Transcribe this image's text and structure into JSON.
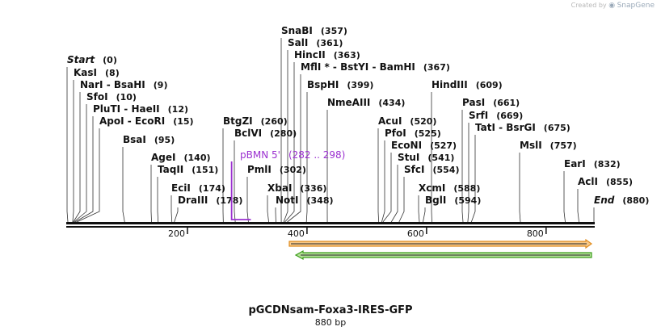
{
  "watermark": {
    "created_by": "Created by",
    "brand": "SnapGene"
  },
  "map": {
    "title": "pGCDNsam-Foxa3-IRES-GFP",
    "subtitle": "880 bp",
    "length_bp": 880,
    "ruler_ticks": [
      "200",
      "400",
      "600",
      "800"
    ],
    "sites": [
      {
        "name": "Start",
        "pos": "(0)",
        "bp": 0,
        "style": "bold-italic"
      },
      {
        "name": "KasI",
        "pos": "(8)",
        "bp": 8
      },
      {
        "name": "NarI - BsaHI",
        "pos": "(9)",
        "bp": 9
      },
      {
        "name": "SfoI",
        "pos": "(10)",
        "bp": 10
      },
      {
        "name": "PluTI - HaeII",
        "pos": "(12)",
        "bp": 12
      },
      {
        "name": "ApoI - EcoRI",
        "pos": "(15)",
        "bp": 15
      },
      {
        "name": "BsaI",
        "pos": "(95)",
        "bp": 95
      },
      {
        "name": "AgeI",
        "pos": "(140)",
        "bp": 140
      },
      {
        "name": "TaqII",
        "pos": "(151)",
        "bp": 151
      },
      {
        "name": "EciI",
        "pos": "(174)",
        "bp": 174
      },
      {
        "name": "DraIII",
        "pos": "(178)",
        "bp": 178
      },
      {
        "name": "BtgZI",
        "pos": "(260)",
        "bp": 260
      },
      {
        "name": "BclVI",
        "pos": "(280)",
        "bp": 280
      },
      {
        "name": "PmlI",
        "pos": "(302)",
        "bp": 302
      },
      {
        "name": "XbaI",
        "pos": "(336)",
        "bp": 336
      },
      {
        "name": "NotI",
        "pos": "(348)",
        "bp": 348
      },
      {
        "name": "SnaBI",
        "pos": "(357)",
        "bp": 357
      },
      {
        "name": "SalI",
        "pos": "(361)",
        "bp": 361
      },
      {
        "name": "HincII",
        "pos": "(363)",
        "bp": 363
      },
      {
        "name": "MflI * - BstYI - BamHI",
        "pos": "(367)",
        "bp": 367
      },
      {
        "name": "BspHI",
        "pos": "(399)",
        "bp": 399
      },
      {
        "name": "NmeAIII",
        "pos": "(434)",
        "bp": 434
      },
      {
        "name": "AcuI",
        "pos": "(520)",
        "bp": 520
      },
      {
        "name": "PfoI",
        "pos": "(525)",
        "bp": 525
      },
      {
        "name": "EcoNI",
        "pos": "(527)",
        "bp": 527
      },
      {
        "name": "StuI",
        "pos": "(541)",
        "bp": 541
      },
      {
        "name": "SfcI",
        "pos": "(554)",
        "bp": 554
      },
      {
        "name": "XcmI",
        "pos": "(588)",
        "bp": 588
      },
      {
        "name": "BglI",
        "pos": "(594)",
        "bp": 594
      },
      {
        "name": "HindIII",
        "pos": "(609)",
        "bp": 609
      },
      {
        "name": "PasI",
        "pos": "(661)",
        "bp": 661
      },
      {
        "name": "SrfI",
        "pos": "(669)",
        "bp": 669
      },
      {
        "name": "TatI - BsrGI",
        "pos": "(675)",
        "bp": 675
      },
      {
        "name": "MslI",
        "pos": "(757)",
        "bp": 757
      },
      {
        "name": "EarI",
        "pos": "(832)",
        "bp": 832
      },
      {
        "name": "AclI",
        "pos": "(855)",
        "bp": 855
      },
      {
        "name": "End",
        "pos": "(880)",
        "bp": 880,
        "style": "bold-italic"
      }
    ],
    "primer": {
      "name": "pBMN 5'",
      "range": "(282 .. 298)",
      "start_bp": 282,
      "end_bp": 298,
      "color": "#9b30d0"
    },
    "features": [
      {
        "name": "orange-feature",
        "direction": "forward",
        "start_bp": 372,
        "end_bp": 880,
        "fill": "#f7c98a",
        "stroke": "#e08c1e"
      },
      {
        "name": "green-feature",
        "direction": "reverse",
        "start_bp": 372,
        "end_bp": 880,
        "fill": "#b6e39a",
        "stroke": "#3b9c1a"
      }
    ]
  }
}
